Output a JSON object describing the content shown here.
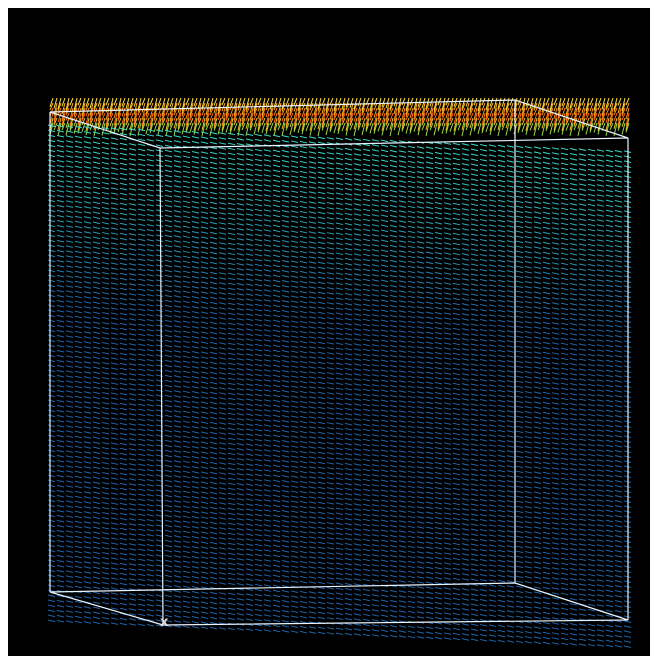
{
  "axis_label": "x"
}
